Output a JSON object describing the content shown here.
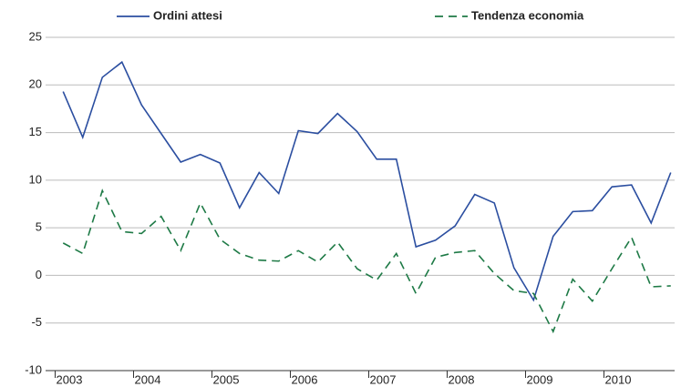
{
  "chart_data": {
    "type": "line",
    "categories": [
      "2003",
      null,
      null,
      null,
      "2004",
      null,
      null,
      null,
      "2005",
      null,
      null,
      null,
      "2006",
      null,
      null,
      null,
      "2007",
      null,
      null,
      null,
      "2008",
      null,
      null,
      null,
      "2009",
      null,
      null,
      null,
      "2010",
      null,
      null,
      null
    ],
    "series": [
      {
        "name": "Ordini attesi",
        "color": "#2b4ea0",
        "dash": false,
        "values": [
          19.3,
          14.5,
          20.8,
          22.4,
          17.9,
          14.9,
          11.9,
          12.7,
          11.8,
          7.1,
          10.8,
          8.6,
          15.2,
          14.9,
          17.0,
          15.1,
          12.2,
          12.2,
          3.0,
          3.7,
          5.2,
          8.5,
          7.6,
          0.8,
          -2.6,
          4.1,
          6.7,
          6.8,
          9.3,
          9.5,
          5.5,
          10.8
        ]
      },
      {
        "name": "Tendenza economia",
        "color": "#1e7a46",
        "dash": true,
        "values": [
          3.4,
          2.3,
          8.9,
          4.6,
          4.4,
          6.2,
          2.6,
          7.6,
          3.8,
          2.3,
          1.6,
          1.5,
          2.6,
          1.4,
          3.5,
          0.7,
          -0.5,
          2.3,
          -1.9,
          1.9,
          2.4,
          2.6,
          0.2,
          -1.6,
          -1.9,
          -5.9,
          -0.4,
          -2.7,
          0.7,
          4.0,
          -1.2,
          -1.1
        ]
      }
    ],
    "ylim": [
      -10,
      25
    ],
    "yticks": [
      -10,
      -5,
      0,
      5,
      10,
      15,
      20,
      25
    ],
    "grid": true
  }
}
